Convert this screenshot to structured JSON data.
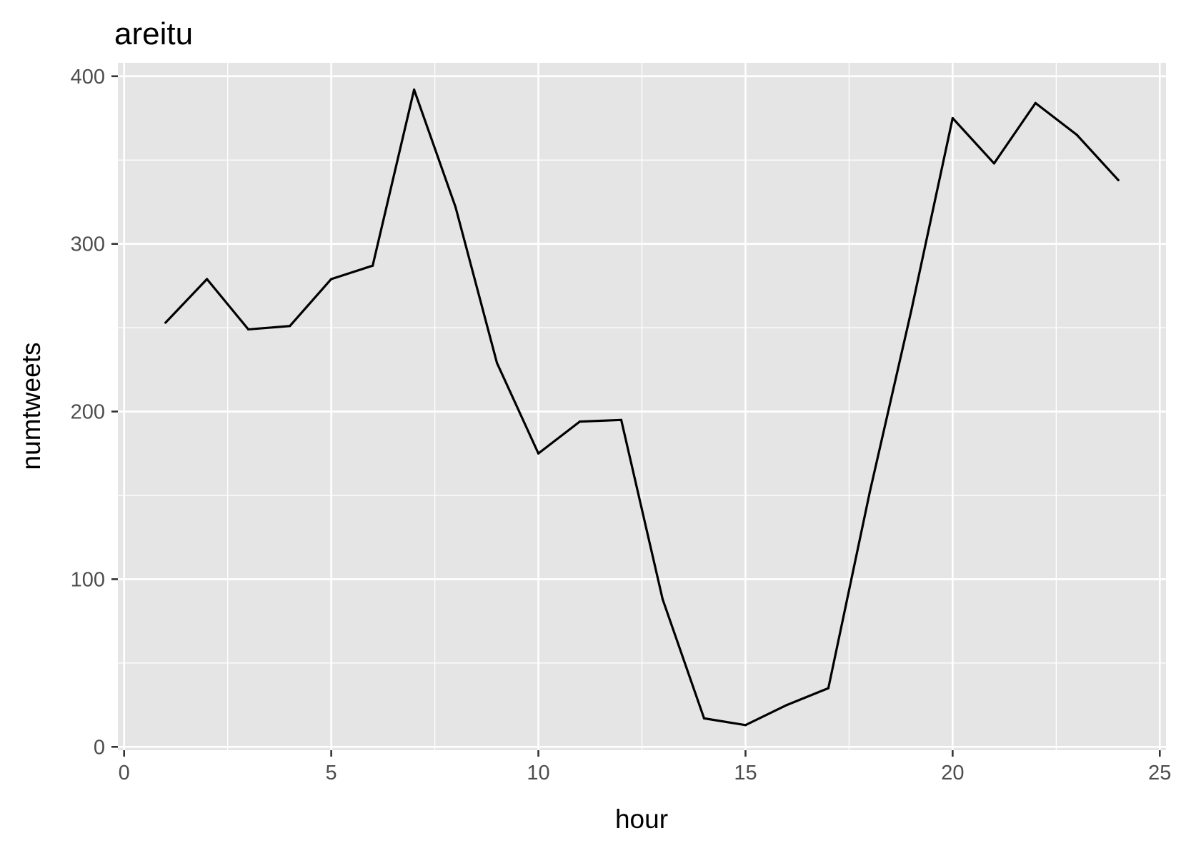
{
  "chart_data": {
    "type": "line",
    "title": "areitu",
    "xlabel": "hour",
    "ylabel": "numtweets",
    "xlim": [
      -0.15,
      25.15
    ],
    "ylim": [
      -2,
      408
    ],
    "x_ticks": [
      0,
      5,
      10,
      15,
      20,
      25
    ],
    "y_ticks": [
      0,
      100,
      200,
      300,
      400
    ],
    "x_minor_ticks": [
      2.5,
      7.5,
      12.5,
      17.5,
      22.5
    ],
    "y_minor_ticks": [
      50,
      150,
      250,
      350
    ],
    "grid": true,
    "legend": "none",
    "panel_color": "#e5e5e5",
    "line_color": "#000000",
    "series": [
      {
        "x": [
          1,
          2,
          3,
          4,
          5,
          6,
          7,
          8,
          9,
          10,
          11,
          12,
          13,
          14,
          15,
          16,
          17,
          18,
          19,
          20,
          21,
          22,
          23,
          24
        ],
        "values": [
          253,
          279,
          249,
          251,
          279,
          287,
          392,
          322,
          229,
          175,
          194,
          195,
          88,
          17,
          13,
          25,
          35,
          152,
          260,
          375,
          348,
          384,
          365,
          338
        ]
      }
    ]
  }
}
